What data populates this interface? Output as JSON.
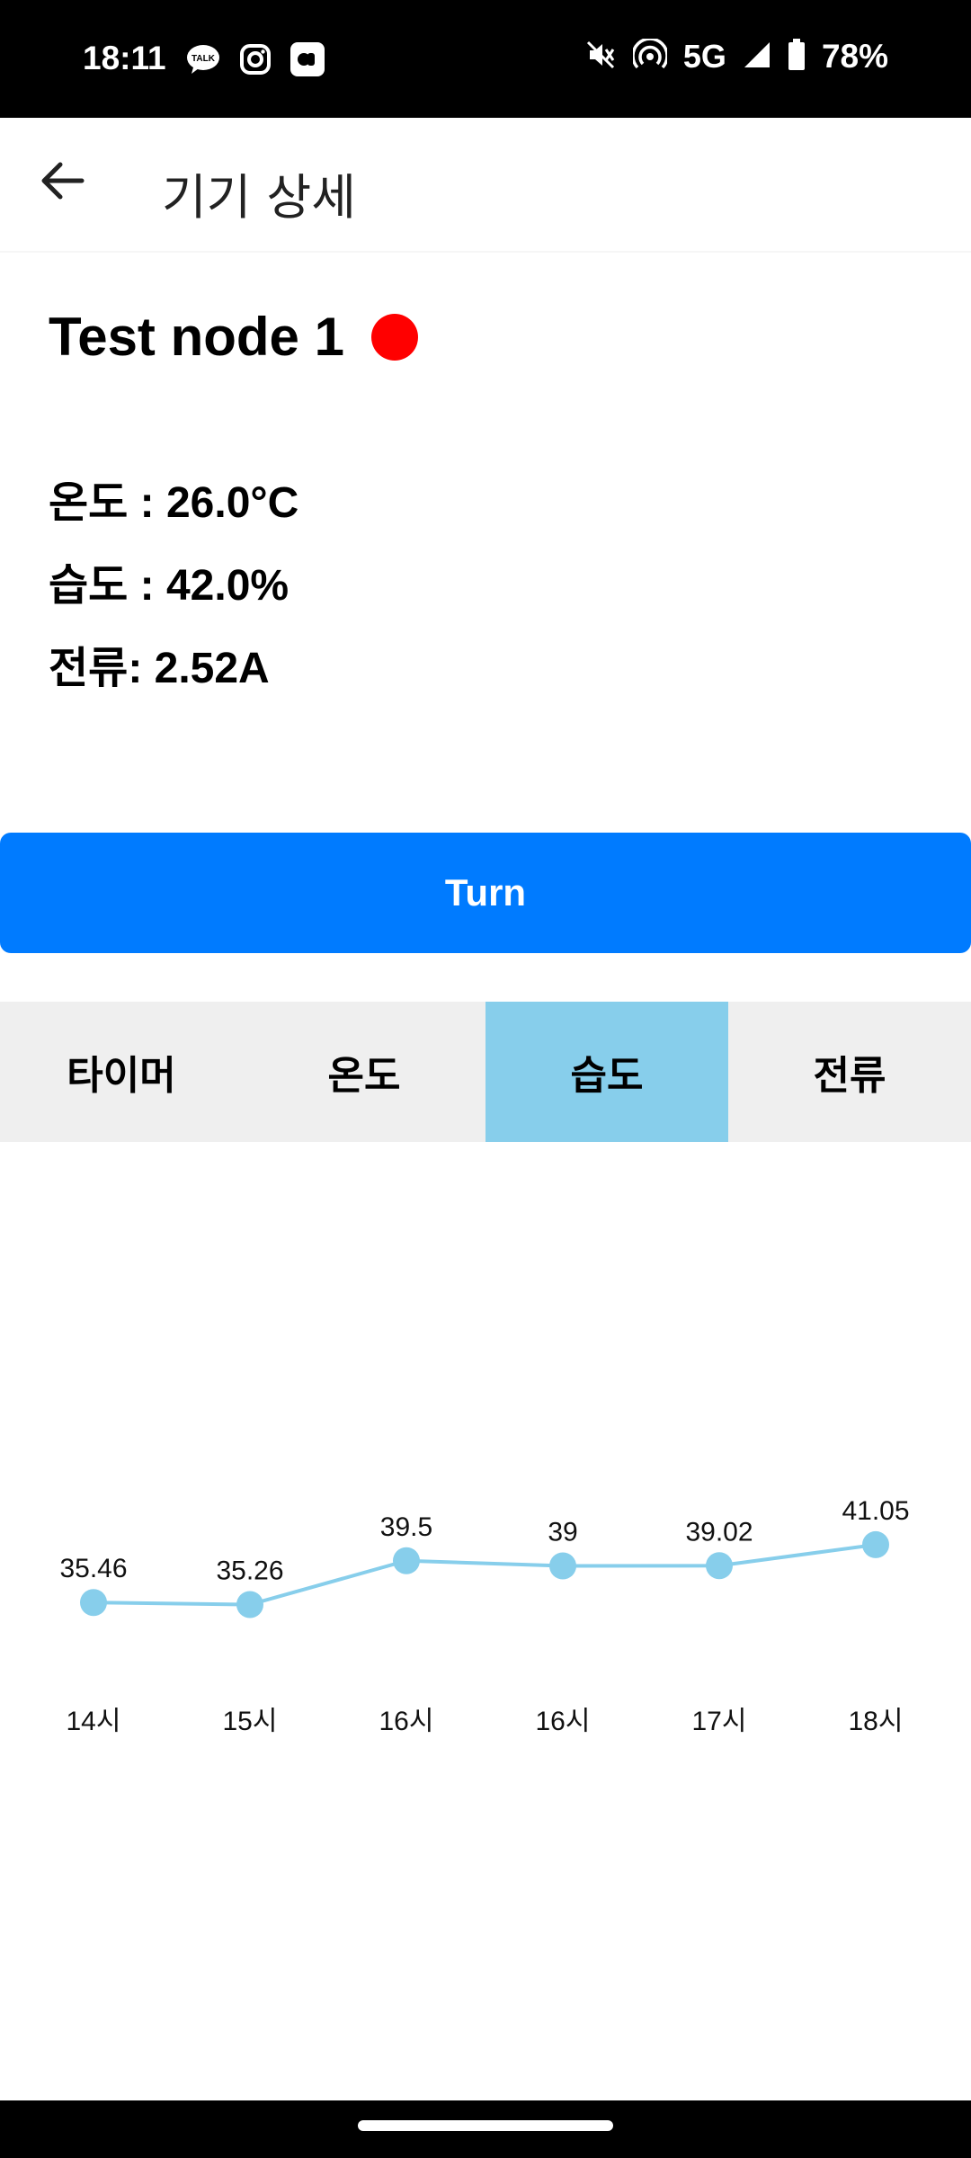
{
  "status_bar": {
    "time": "18:11",
    "network": "5G",
    "battery": "78%",
    "icons": [
      "kakaotalk-icon",
      "instagram-icon",
      "app-icon",
      "mute-icon",
      "hotspot-icon",
      "signal-icon",
      "battery-icon"
    ]
  },
  "app_bar": {
    "title": "기기 상세"
  },
  "device": {
    "name": "Test node 1",
    "status_color": "#ff0000",
    "temperature": "온도 : 26.0°C",
    "humidity": "습도 : 42.0%",
    "current": "전류: 2.52A"
  },
  "actions": {
    "turn_label": "Turn"
  },
  "tabs": [
    {
      "label": "타이머",
      "active": false
    },
    {
      "label": "온도",
      "active": false
    },
    {
      "label": "습도",
      "active": true
    },
    {
      "label": "전류",
      "active": false
    }
  ],
  "colors": {
    "accent": "#007bff",
    "tab_active": "#87ceeb",
    "chart_line": "#87ceeb"
  },
  "chart_data": {
    "type": "line",
    "categories": [
      "14시",
      "15시",
      "16시",
      "16시",
      "17시",
      "18시"
    ],
    "values": [
      35.46,
      35.26,
      39.5,
      39,
      39.02,
      41.05
    ],
    "data_labels": [
      "35.46",
      "35.26",
      "39.5",
      "39",
      "39.02",
      "41.05"
    ],
    "ylim": [
      20,
      60
    ],
    "grid": false,
    "legend": "none"
  }
}
